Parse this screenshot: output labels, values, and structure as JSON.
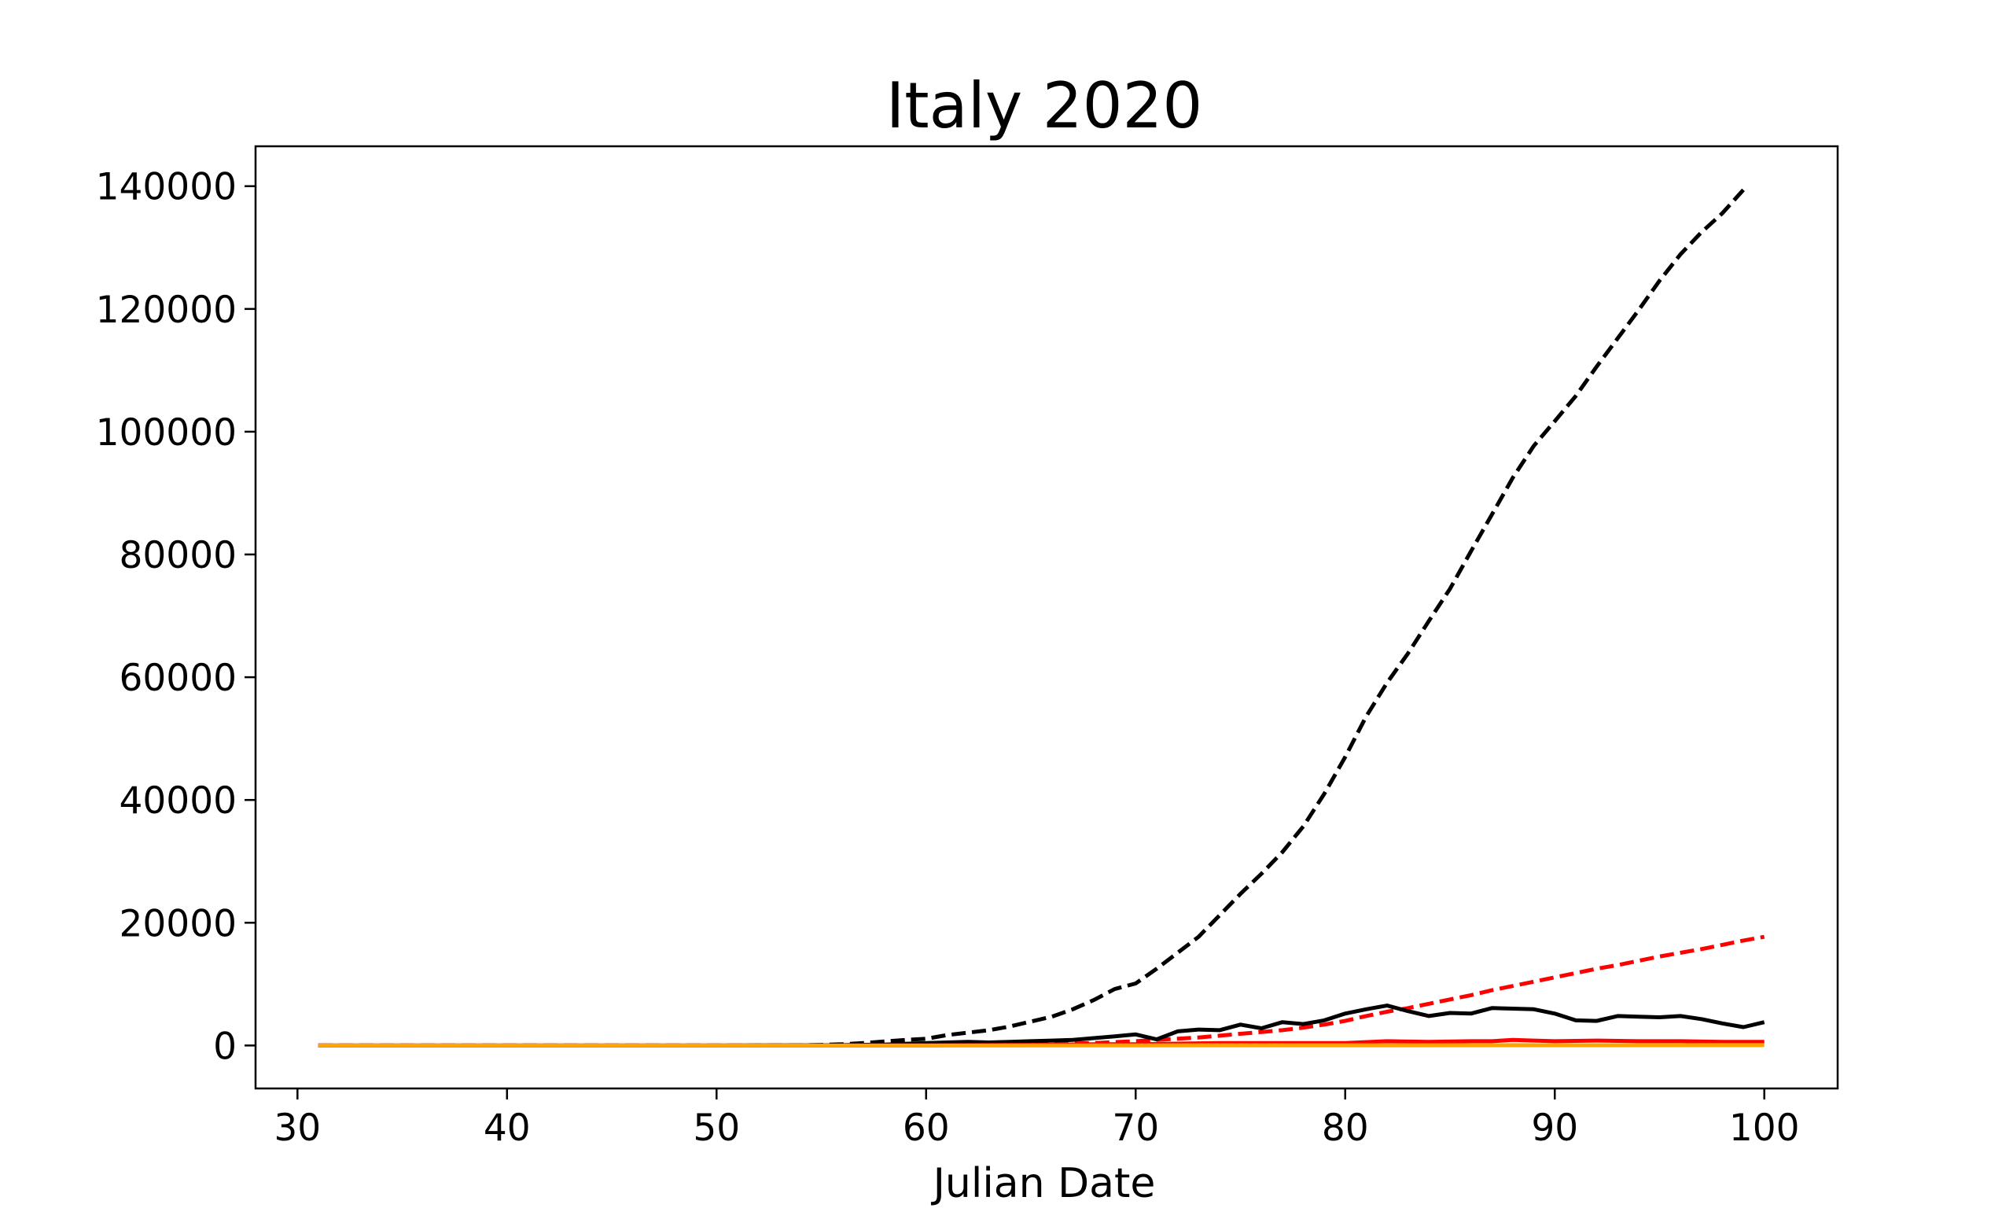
{
  "chart_data": {
    "type": "line",
    "title": "Italy 2020",
    "xlabel": "Julian Date",
    "ylabel": "",
    "xlim": [
      28,
      103.5
    ],
    "ylim": [
      -7000,
      146500
    ],
    "xticks": [
      30,
      40,
      50,
      60,
      70,
      80,
      90,
      100
    ],
    "yticks": [
      0,
      20000,
      40000,
      60000,
      80000,
      100000,
      120000,
      140000
    ],
    "grid": false,
    "legend": "none",
    "series": [
      {
        "color": "#000000",
        "dash": true,
        "points": [
          [
            31,
            0
          ],
          [
            40,
            0
          ],
          [
            50,
            0
          ],
          [
            52,
            5
          ],
          [
            54,
            50
          ],
          [
            55,
            100
          ],
          [
            56,
            200
          ],
          [
            57,
            400
          ],
          [
            58,
            650
          ],
          [
            59,
            900
          ],
          [
            60,
            1100
          ],
          [
            61,
            1700
          ],
          [
            62,
            2100
          ],
          [
            63,
            2500
          ],
          [
            64,
            3100
          ],
          [
            65,
            3900
          ],
          [
            66,
            4700
          ],
          [
            67,
            5900
          ],
          [
            68,
            7400
          ],
          [
            69,
            9200
          ],
          [
            70,
            10100
          ],
          [
            71,
            12500
          ],
          [
            72,
            15100
          ],
          [
            73,
            17700
          ],
          [
            74,
            21200
          ],
          [
            75,
            24700
          ],
          [
            76,
            27980
          ],
          [
            77,
            31500
          ],
          [
            78,
            35700
          ],
          [
            79,
            41000
          ],
          [
            80,
            47000
          ],
          [
            81,
            53600
          ],
          [
            82,
            59100
          ],
          [
            83,
            63900
          ],
          [
            84,
            69200
          ],
          [
            85,
            74400
          ],
          [
            86,
            80500
          ],
          [
            87,
            86500
          ],
          [
            88,
            92500
          ],
          [
            89,
            97700
          ],
          [
            90,
            101700
          ],
          [
            91,
            105800
          ],
          [
            92,
            110600
          ],
          [
            93,
            115200
          ],
          [
            94,
            119800
          ],
          [
            95,
            124600
          ],
          [
            96,
            128900
          ],
          [
            97,
            132500
          ],
          [
            98,
            135600
          ],
          [
            99,
            139400
          ]
        ]
      },
      {
        "color": "#ff0000",
        "dash": true,
        "points": [
          [
            31,
            0
          ],
          [
            50,
            0
          ],
          [
            55,
            5
          ],
          [
            60,
            30
          ],
          [
            65,
            150
          ],
          [
            68,
            400
          ],
          [
            70,
            700
          ],
          [
            71,
            900
          ],
          [
            72,
            1100
          ],
          [
            73,
            1300
          ],
          [
            74,
            1600
          ],
          [
            75,
            1900
          ],
          [
            76,
            2200
          ],
          [
            77,
            2500
          ],
          [
            78,
            2900
          ],
          [
            79,
            3400
          ],
          [
            80,
            4000
          ],
          [
            81,
            4800
          ],
          [
            82,
            5500
          ],
          [
            83,
            6100
          ],
          [
            84,
            6800
          ],
          [
            85,
            7500
          ],
          [
            86,
            8200
          ],
          [
            87,
            9000
          ],
          [
            88,
            9700
          ],
          [
            89,
            10400
          ],
          [
            90,
            11100
          ],
          [
            91,
            11800
          ],
          [
            92,
            12500
          ],
          [
            93,
            13100
          ],
          [
            94,
            13800
          ],
          [
            95,
            14500
          ],
          [
            96,
            15100
          ],
          [
            97,
            15700
          ],
          [
            98,
            16400
          ],
          [
            99,
            17100
          ],
          [
            100,
            17700
          ]
        ]
      },
      {
        "color": "#000000",
        "dash": false,
        "points": [
          [
            31,
            0
          ],
          [
            50,
            0
          ],
          [
            55,
            30
          ],
          [
            58,
            150
          ],
          [
            60,
            400
          ],
          [
            61,
            500
          ],
          [
            62,
            600
          ],
          [
            63,
            500
          ],
          [
            64,
            600
          ],
          [
            65,
            700
          ],
          [
            66,
            800
          ],
          [
            67,
            900
          ],
          [
            68,
            1200
          ],
          [
            69,
            1500
          ],
          [
            70,
            1800
          ],
          [
            71,
            1000
          ],
          [
            72,
            2300
          ],
          [
            73,
            2600
          ],
          [
            74,
            2500
          ],
          [
            75,
            3400
          ],
          [
            76,
            2800
          ],
          [
            77,
            3800
          ],
          [
            78,
            3500
          ],
          [
            79,
            4100
          ],
          [
            80,
            5200
          ],
          [
            81,
            5900
          ],
          [
            82,
            6500
          ],
          [
            83,
            5600
          ],
          [
            84,
            4800
          ],
          [
            85,
            5300
          ],
          [
            86,
            5200
          ],
          [
            87,
            6100
          ],
          [
            88,
            6000
          ],
          [
            89,
            5900
          ],
          [
            90,
            5200
          ],
          [
            91,
            4100
          ],
          [
            92,
            4000
          ],
          [
            93,
            4800
          ],
          [
            94,
            4700
          ],
          [
            95,
            4600
          ],
          [
            96,
            4800
          ],
          [
            97,
            4300
          ],
          [
            98,
            3600
          ],
          [
            99,
            3000
          ],
          [
            100,
            3800
          ]
        ]
      },
      {
        "color": "#ff0000",
        "dash": false,
        "points": [
          [
            31,
            0
          ],
          [
            55,
            0
          ],
          [
            60,
            20
          ],
          [
            65,
            100
          ],
          [
            68,
            200
          ],
          [
            70,
            200
          ],
          [
            72,
            300
          ],
          [
            74,
            400
          ],
          [
            76,
            400
          ],
          [
            78,
            400
          ],
          [
            80,
            400
          ],
          [
            82,
            700
          ],
          [
            84,
            600
          ],
          [
            86,
            700
          ],
          [
            87,
            700
          ],
          [
            88,
            900
          ],
          [
            89,
            800
          ],
          [
            90,
            700
          ],
          [
            92,
            800
          ],
          [
            94,
            700
          ],
          [
            96,
            700
          ],
          [
            98,
            600
          ],
          [
            100,
            600
          ]
        ]
      },
      {
        "color": "#ffa500",
        "dash": false,
        "points": [
          [
            31,
            0
          ],
          [
            60,
            0
          ],
          [
            70,
            20
          ],
          [
            80,
            40
          ],
          [
            90,
            50
          ],
          [
            100,
            60
          ]
        ]
      }
    ]
  }
}
